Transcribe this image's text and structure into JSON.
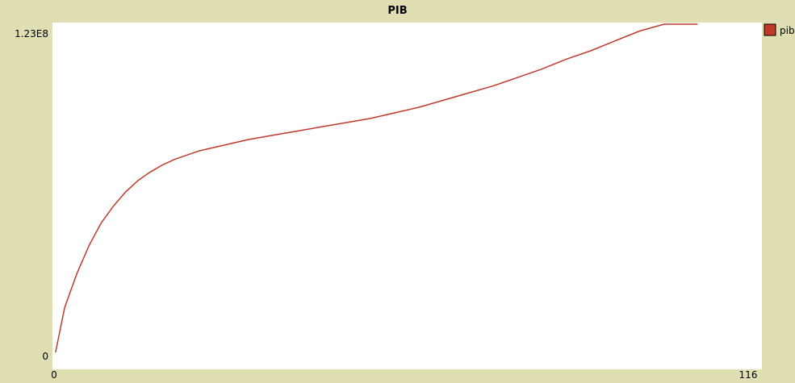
{
  "chart_data": {
    "type": "line",
    "title": "PIB",
    "xlabel": "",
    "ylabel": "",
    "xlim": [
      0,
      116
    ],
    "ylim": [
      0,
      123000000
    ],
    "x_tick_labels": [
      "0",
      "116"
    ],
    "y_tick_labels": [
      "0",
      "1.23E8"
    ],
    "legend_position": "right",
    "grid": false,
    "series": [
      {
        "name": "pib",
        "color": "#c0392b",
        "x": [
          0.5,
          2,
          4,
          6,
          8,
          10,
          12,
          14,
          16,
          18,
          20,
          22,
          24,
          26,
          28,
          30,
          32,
          36,
          40,
          44,
          48,
          52,
          56,
          60,
          64,
          68,
          72,
          76,
          80,
          84,
          88,
          92,
          96,
          100,
          104,
          105.5
        ],
        "y": [
          6000000,
          22000000,
          34000000,
          44000000,
          52000000,
          58000000,
          63000000,
          67000000,
          70000000,
          72500000,
          74500000,
          76000000,
          77500000,
          78500000,
          79500000,
          80500000,
          81500000,
          83000000,
          84500000,
          86000000,
          87500000,
          89000000,
          91000000,
          93000000,
          95500000,
          98000000,
          100500000,
          103500000,
          106500000,
          110000000,
          113000000,
          116500000,
          120000000,
          123500000,
          127000000,
          128500000
        ]
      }
    ]
  }
}
